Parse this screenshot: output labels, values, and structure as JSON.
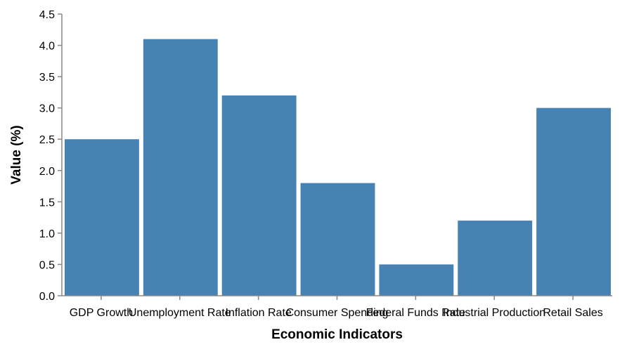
{
  "chart_data": {
    "type": "bar",
    "categories": [
      "GDP Growth",
      "Unemployment Rate",
      "Inflation Rate",
      "Consumer Spending",
      "Federal Funds Rate",
      "Industrial Production",
      "Retail Sales"
    ],
    "values": [
      2.5,
      4.1,
      3.2,
      1.8,
      0.5,
      1.2,
      3.0
    ],
    "xlabel": "Economic Indicators",
    "ylabel": "Value (%)",
    "ylim": [
      0,
      4.5
    ],
    "yticks": [
      "0.0",
      "0.5",
      "1.0",
      "1.5",
      "2.0",
      "2.5",
      "3.0",
      "3.5",
      "4.0",
      "4.5"
    ],
    "bar_color": "#4682b4",
    "grid": false
  }
}
